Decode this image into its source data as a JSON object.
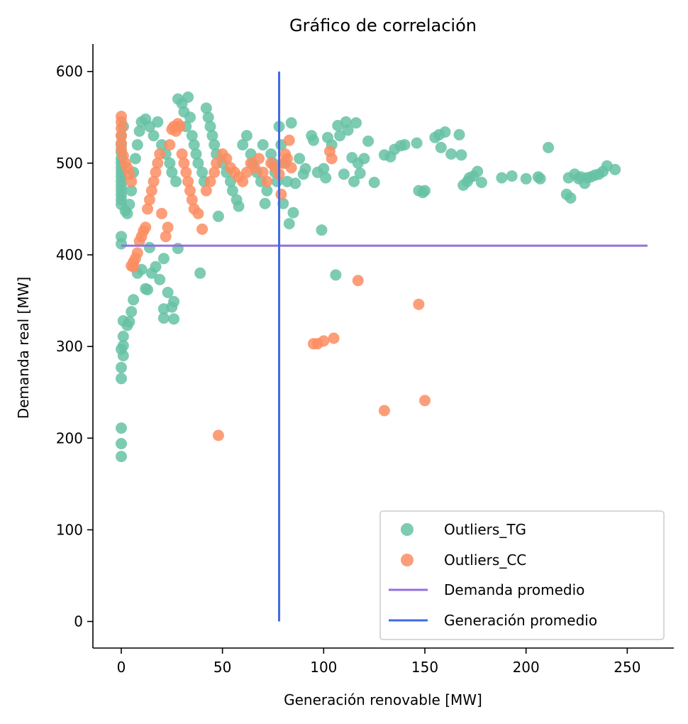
{
  "chart_data": {
    "type": "scatter",
    "title": "Gráfico de correlación",
    "xlabel": "Generación renovable [MW]",
    "ylabel": "Demanda real [MW]",
    "xlim": [
      -14,
      273
    ],
    "ylim": [
      -29,
      630
    ],
    "xticks": [
      0,
      50,
      100,
      150,
      200,
      250
    ],
    "yticks": [
      0,
      100,
      200,
      300,
      400,
      500,
      600
    ],
    "grid": false,
    "legend_position": "lower-right",
    "colors": {
      "Outliers_TG": "#66c2a5",
      "Outliers_CC": "#fc8d62",
      "Demanda promedio": "#9370db",
      "Generación promedio": "#4169e1"
    },
    "series": [
      {
        "name": "Outliers_TG",
        "type": "scatter",
        "points": [
          [
            0,
            180
          ],
          [
            0,
            194
          ],
          [
            0,
            211
          ],
          [
            0,
            265
          ],
          [
            0,
            277
          ],
          [
            0,
            297
          ],
          [
            1,
            290
          ],
          [
            1,
            301
          ],
          [
            1,
            311
          ],
          [
            1,
            328
          ],
          [
            3,
            323
          ],
          [
            4,
            327
          ],
          [
            5,
            338
          ],
          [
            6,
            351
          ],
          [
            8,
            380
          ],
          [
            10,
            384
          ],
          [
            12,
            363
          ],
          [
            13,
            362
          ],
          [
            14,
            408
          ],
          [
            15,
            380
          ],
          [
            17,
            387
          ],
          [
            19,
            373
          ],
          [
            21,
            396
          ],
          [
            21,
            341
          ],
          [
            21,
            331
          ],
          [
            23,
            359
          ],
          [
            25,
            343
          ],
          [
            26,
            349
          ],
          [
            26,
            330
          ],
          [
            28,
            407
          ],
          [
            0,
            412
          ],
          [
            0,
            420
          ],
          [
            0,
            455
          ],
          [
            0,
            460
          ],
          [
            0,
            465
          ],
          [
            0,
            470
          ],
          [
            0,
            475
          ],
          [
            0,
            480
          ],
          [
            0,
            485
          ],
          [
            0,
            490
          ],
          [
            0,
            495
          ],
          [
            0,
            500
          ],
          [
            0,
            505
          ],
          [
            0,
            512
          ],
          [
            0,
            520
          ],
          [
            0,
            530
          ],
          [
            1,
            540
          ],
          [
            2,
            448
          ],
          [
            3,
            445
          ],
          [
            4,
            455
          ],
          [
            5,
            470
          ],
          [
            6,
            490
          ],
          [
            7,
            505
          ],
          [
            8,
            520
          ],
          [
            9,
            535
          ],
          [
            10,
            545
          ],
          [
            12,
            548
          ],
          [
            14,
            540
          ],
          [
            16,
            530
          ],
          [
            18,
            545
          ],
          [
            20,
            520
          ],
          [
            22,
            510
          ],
          [
            24,
            500
          ],
          [
            25,
            490
          ],
          [
            27,
            480
          ],
          [
            28,
            570
          ],
          [
            30,
            565
          ],
          [
            31,
            556
          ],
          [
            32,
            540
          ],
          [
            33,
            572
          ],
          [
            34,
            550
          ],
          [
            35,
            530
          ],
          [
            36,
            520
          ],
          [
            37,
            510
          ],
          [
            38,
            500
          ],
          [
            39,
            380
          ],
          [
            40,
            490
          ],
          [
            41,
            480
          ],
          [
            42,
            560
          ],
          [
            43,
            550
          ],
          [
            44,
            540
          ],
          [
            45,
            530
          ],
          [
            46,
            520
          ],
          [
            47,
            510
          ],
          [
            48,
            442
          ],
          [
            50,
            500
          ],
          [
            52,
            490
          ],
          [
            54,
            480
          ],
          [
            55,
            470
          ],
          [
            57,
            460
          ],
          [
            58,
            453
          ],
          [
            60,
            520
          ],
          [
            62,
            530
          ],
          [
            64,
            510
          ],
          [
            65,
            500
          ],
          [
            67,
            490
          ],
          [
            69,
            480
          ],
          [
            70,
            520
          ],
          [
            71,
            456
          ],
          [
            72,
            470
          ],
          [
            74,
            510
          ],
          [
            75,
            500
          ],
          [
            76,
            490
          ],
          [
            77,
            480
          ],
          [
            78,
            540
          ],
          [
            79,
            520
          ],
          [
            80,
            456
          ],
          [
            81,
            500
          ],
          [
            82,
            480
          ],
          [
            83,
            434
          ],
          [
            84,
            544
          ],
          [
            85,
            446
          ],
          [
            86,
            478
          ],
          [
            88,
            505
          ],
          [
            90,
            488
          ],
          [
            91,
            494
          ],
          [
            94,
            530
          ],
          [
            95,
            525
          ],
          [
            97,
            490
          ],
          [
            99,
            427
          ],
          [
            100,
            494
          ],
          [
            101,
            484
          ],
          [
            102,
            528
          ],
          [
            104,
            520
          ],
          [
            106,
            378
          ],
          [
            107,
            541
          ],
          [
            108,
            530
          ],
          [
            110,
            488
          ],
          [
            111,
            545
          ],
          [
            112,
            536
          ],
          [
            114,
            506
          ],
          [
            115,
            480
          ],
          [
            116,
            544
          ],
          [
            117,
            500
          ],
          [
            118,
            489
          ],
          [
            120,
            505
          ],
          [
            122,
            524
          ],
          [
            125,
            479
          ],
          [
            130,
            509
          ],
          [
            133,
            507
          ],
          [
            135,
            515
          ],
          [
            138,
            519
          ],
          [
            140,
            520
          ],
          [
            146,
            522
          ],
          [
            147,
            470
          ],
          [
            149,
            468
          ],
          [
            150,
            470
          ],
          [
            155,
            528
          ],
          [
            157,
            531
          ],
          [
            158,
            517
          ],
          [
            160,
            534
          ],
          [
            163,
            510
          ],
          [
            167,
            531
          ],
          [
            168,
            509
          ],
          [
            169,
            476
          ],
          [
            171,
            480
          ],
          [
            172,
            484
          ],
          [
            174,
            486
          ],
          [
            176,
            491
          ],
          [
            178,
            479
          ],
          [
            188,
            484
          ],
          [
            193,
            486
          ],
          [
            200,
            483
          ],
          [
            206,
            485
          ],
          [
            207,
            483
          ],
          [
            211,
            517
          ],
          [
            220,
            466
          ],
          [
            221,
            484
          ],
          [
            222,
            462
          ],
          [
            224,
            488
          ],
          [
            226,
            483
          ],
          [
            227,
            485
          ],
          [
            229,
            478
          ],
          [
            230,
            484
          ],
          [
            232,
            485
          ],
          [
            234,
            487
          ],
          [
            236,
            488
          ],
          [
            238,
            491
          ],
          [
            240,
            497
          ],
          [
            244,
            493
          ]
        ]
      },
      {
        "name": "Outliers_CC",
        "type": "scatter",
        "points": [
          [
            0,
            551
          ],
          [
            0,
            545
          ],
          [
            0,
            538
          ],
          [
            0,
            530
          ],
          [
            0,
            522
          ],
          [
            0,
            515
          ],
          [
            1,
            508
          ],
          [
            2,
            500
          ],
          [
            3,
            495
          ],
          [
            4,
            488
          ],
          [
            5,
            480
          ],
          [
            5,
            388
          ],
          [
            6,
            392
          ],
          [
            6,
            387
          ],
          [
            7,
            396
          ],
          [
            8,
            402
          ],
          [
            9,
            415
          ],
          [
            10,
            420
          ],
          [
            11,
            426
          ],
          [
            12,
            430
          ],
          [
            13,
            450
          ],
          [
            14,
            460
          ],
          [
            15,
            470
          ],
          [
            16,
            480
          ],
          [
            17,
            490
          ],
          [
            18,
            500
          ],
          [
            19,
            510
          ],
          [
            20,
            445
          ],
          [
            22,
            420
          ],
          [
            23,
            430
          ],
          [
            24,
            520
          ],
          [
            25,
            537
          ],
          [
            26,
            540
          ],
          [
            27,
            535
          ],
          [
            28,
            543
          ],
          [
            29,
            540
          ],
          [
            30,
            510
          ],
          [
            31,
            500
          ],
          [
            32,
            490
          ],
          [
            33,
            480
          ],
          [
            34,
            470
          ],
          [
            35,
            460
          ],
          [
            36,
            450
          ],
          [
            38,
            445
          ],
          [
            40,
            428
          ],
          [
            42,
            470
          ],
          [
            44,
            480
          ],
          [
            46,
            490
          ],
          [
            47,
            500
          ],
          [
            48,
            203
          ],
          [
            50,
            510
          ],
          [
            52,
            505
          ],
          [
            54,
            495
          ],
          [
            56,
            490
          ],
          [
            58,
            485
          ],
          [
            60,
            480
          ],
          [
            62,
            490
          ],
          [
            64,
            500
          ],
          [
            66,
            495
          ],
          [
            68,
            505
          ],
          [
            70,
            490
          ],
          [
            72,
            480
          ],
          [
            74,
            500
          ],
          [
            76,
            495
          ],
          [
            78,
            488
          ],
          [
            79,
            466
          ],
          [
            80,
            500
          ],
          [
            81,
            510
          ],
          [
            82,
            505
          ],
          [
            83,
            525
          ],
          [
            84,
            495
          ],
          [
            95,
            303
          ],
          [
            97,
            303
          ],
          [
            100,
            306
          ],
          [
            103,
            513
          ],
          [
            104,
            505
          ],
          [
            105,
            309
          ],
          [
            117,
            372
          ],
          [
            130,
            230
          ],
          [
            147,
            346
          ],
          [
            150,
            241
          ]
        ]
      }
    ],
    "reference_lines": [
      {
        "name": "Demanda promedio",
        "orientation": "horizontal",
        "y": 410,
        "x_range": [
          0,
          260
        ]
      },
      {
        "name": "Generación promedio",
        "orientation": "vertical",
        "x": 78,
        "y_range": [
          0,
          600
        ]
      }
    ]
  }
}
